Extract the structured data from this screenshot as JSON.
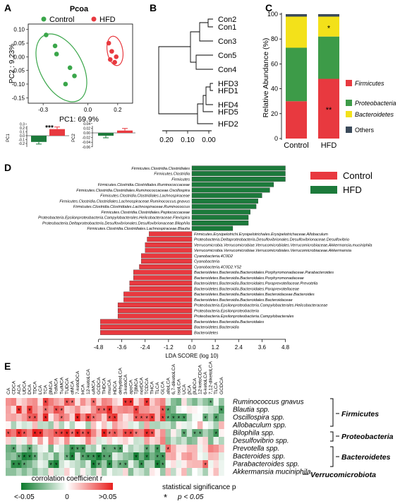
{
  "colors": {
    "control": "#e8393f",
    "hfd": "#1c7a3b",
    "firm": "#e8393f",
    "prot": "#3d9b48",
    "bact": "#f3e11a",
    "oth": "#3b4a5a"
  },
  "panels": {
    "A": "A",
    "B": "B",
    "C": "C",
    "D": "D",
    "E": "E"
  },
  "chart_data": [
    {
      "type": "scatter",
      "title": "Pcoa",
      "xlabel": "PC1: 69.9%",
      "ylabel": "PC2 : 9.23%",
      "xlim": [
        -0.4,
        0.3
      ],
      "ylim": [
        -0.17,
        0.12
      ],
      "x_ticks": [
        "-0.3",
        "0.0",
        "0.2"
      ],
      "y_ticks": [
        "0.10",
        "0.05",
        "0.00",
        "-0.05",
        "-0.10",
        "-0.15"
      ],
      "legend": [
        "Control",
        "HFD"
      ],
      "series": [
        {
          "name": "Control",
          "x": [
            -0.28,
            -0.22,
            -0.21,
            -0.12,
            -0.09,
            -0.15
          ],
          "y": [
            0.08,
            0.04,
            0.01,
            -0.04,
            -0.07,
            -0.1
          ]
        },
        {
          "name": "HFD",
          "x": [
            0.14,
            0.16,
            0.19,
            0.15,
            0.18
          ],
          "y": [
            0.05,
            0.02,
            0.0,
            -0.01,
            -0.02
          ]
        }
      ]
    },
    {
      "type": "bar",
      "title": "",
      "significance": "***",
      "categories": [
        "Control",
        "HFD"
      ],
      "ylabel": "PC1",
      "y_ticks": [
        "0.3",
        "0.2",
        "0.1",
        "0.0",
        "-0.1",
        "-0.2"
      ],
      "values": [
        -0.16,
        0.17
      ]
    },
    {
      "type": "bar",
      "title": "",
      "categories": [
        "Control",
        "HFD"
      ],
      "ylabel": "PC2",
      "y_ticks": [
        "0.04",
        "0.02",
        "0.00",
        "-0.02",
        "-0.04",
        "-0.06"
      ],
      "values": [
        -0.012,
        0.01
      ]
    },
    {
      "type": "dendrogram",
      "labels": [
        "Con2",
        "Con1",
        "Con3",
        "Con5",
        "Con4",
        "HFD3",
        "HFD1",
        "HFD4",
        "HFD5",
        "HFD2"
      ],
      "x_ticks": [
        "0.20",
        "0.10",
        "0.00"
      ]
    },
    {
      "type": "bar",
      "stacked": true,
      "categories": [
        "Control",
        "HFD"
      ],
      "ylabel": "Relative Abundance (%)",
      "y_ticks": [
        "100",
        "80",
        "60",
        "40",
        "20",
        "0"
      ],
      "ylim": [
        0,
        100
      ],
      "series": [
        {
          "name": "Firmicutes",
          "values": [
            30,
            48
          ]
        },
        {
          "name": "Proteobacteria",
          "values": [
            43,
            34
          ]
        },
        {
          "name": "Bacteroidetes",
          "values": [
            25,
            16
          ]
        },
        {
          "name": "Others",
          "values": [
            2,
            2
          ]
        }
      ],
      "annotations": [
        "**",
        "*"
      ]
    },
    {
      "type": "bar",
      "orientation": "horizontal",
      "xlabel": "LDA SCORE (log 10)",
      "x_ticks": [
        "-4.8",
        "-3.6",
        "-2.4",
        "-1.2",
        "0.0",
        "1.2",
        "2.4",
        "3.6",
        "4.8"
      ],
      "xlim": [
        -4.8,
        4.8
      ],
      "legend": [
        "Control",
        "HFD"
      ],
      "categories": [
        "Firmicutes.Clostridia.Clostridiales",
        "Firmicutes.Clostridia",
        "Firmicutes",
        "Firmicutes.Clostridia.Clostridiales.Ruminococcaceae",
        "Firmicutes.Clostridia.Clostridiales.Ruminococcaceae.Oscillospira",
        "Firmicutes.Clostridia.Clostridiales.Lachnospiraceae",
        "Firmicutes.Clostridia.Clostridiales.Lachnospiraceae.Ruminococcus.gnavus",
        "Firmicutes.Clostridia.Clostridiales.Lachnospiraceae.Ruminococcus",
        "Firmicutes.Clostridia.Clostridiales.Peptococcaceae",
        "Proteobacteria.Epsilonproteobacteria.Campylobacterales.Helicobacteraceae.Flexispira",
        "Proteobacteria.Deltaproteobacteria.Desulfovibrionales.Desulfovibrionaceae.Bilophila",
        "Firmicutes.Clostridia.Clostridiales.Lachnospiraceae.Blautia",
        "Firmicutes.Erysipelotrichi.Erysipelotrichales.Erysipelotrichaceae.Allobaculum",
        "Proteobacteria.Deltaproteobacteria.Desulfovibrionales.Desulfovibrionaceae.Desulfovibrio",
        "Verrucomicrobia.Verrucomicrobiae.Verrucomicrobiales.Verrucomicrobiaceae.Akkermansia.muciniphila",
        "Verrucomicrobia.Verrucomicrobiae.Verrucomicrobiales.Verrucomicrobiaceae.Akkermansia",
        "Cyanobacteria.4C0D2",
        "Cyanobacteria",
        "Cyanobacteria.4C0D2.YS2",
        "Bacteroidetes.Bacteroidia.Bacteroidales.Porphyromonadaceae.Parabacteroides",
        "Bacteroidetes.Bacteroidia.Bacteroidales.Porphyromonadaceae",
        "Bacteroidetes.Bacteroidia.Bacteroidales.Paraprevotellaceae.Prevotella",
        "Bacteroidetes.Bacteroidia.Bacteroidales.Paraprevotellaceae",
        "Bacteroidetes.Bacteroidia.Bacteroidales.Bacteroidaceae.Bacteroides",
        "Bacteroidetes.Bacteroidia.Bacteroidales.Bacteroidaceae",
        "Proteobacteria.Epsilonproteobacteria.Campylobacterales.Helicobacteraceae",
        "Proteobacteria.Epsilonproteobacteria",
        "Proteobacteria.Epsilonproteobacteria.Campylobacterales",
        "Bacteroidetes.Bacteroidia.Bacteroidales",
        "Bacteroidetes.Bacteroidia",
        "Bacteroidetes"
      ],
      "values": [
        4.8,
        4.8,
        4.8,
        4.2,
        4.0,
        3.6,
        3.4,
        3.3,
        3.0,
        2.9,
        2.9,
        2.1,
        -2.2,
        -2.3,
        -2.4,
        -2.4,
        -2.6,
        -2.6,
        -2.7,
        -3.0,
        -3.0,
        -3.2,
        -3.2,
        -3.5,
        -3.5,
        -3.8,
        -3.8,
        -3.8,
        -4.7,
        -4.7,
        -4.7
      ]
    },
    {
      "type": "heatmap",
      "columns": [
        "CA",
        "CDCA",
        "ACA",
        "UDCA",
        "DCA",
        "TDCA",
        "LCA",
        "TCA",
        "βMCA",
        "TαMCA",
        "TωMCA",
        "TUDCA",
        "αMCA",
        "7-ketoDCA",
        "HCA",
        "12-ketoLCA",
        "ωMCA",
        "GCDCA",
        "THDCA",
        "murCA",
        "HDCA",
        "dehydroLCA",
        "3-ketoCA",
        "apoCA",
        "TβMCA",
        "norDCA",
        "TCDCA",
        "THCA",
        "TLCA",
        "GLCA",
        "alloLCA",
        "6,7-diketoLCA",
        "isoLCA",
        "UCA",
        "βCA",
        "βUDCA",
        "12-ketoCDCA",
        "6-ketoLCA",
        "7,12-diketoLCA",
        "TLCA",
        "GCDCA"
      ],
      "rows": [
        "Ruminococcus gnavus",
        "Blautia spp.",
        "Oscillospira spp.",
        "Allobaculum spp.",
        "Bilophila spp.",
        "Desulfovibrio spp.",
        "Prevotella spp.",
        "Bacteroides spp.",
        "Parabacteroides spp.",
        "Akkermansia muciniphila"
      ],
      "groups": [
        "Firmicutes",
        "Proteobacteria",
        "Bacteroidetes",
        "Verrucomicrobiota"
      ],
      "legend_title": "corrolation coefficient r",
      "legend_ticks": [
        "<-0.05",
        "0",
        ">0.05"
      ],
      "significance_title": "statistical significance p",
      "significance_note": "p < 0.05",
      "significance_marker": "*"
    }
  ]
}
